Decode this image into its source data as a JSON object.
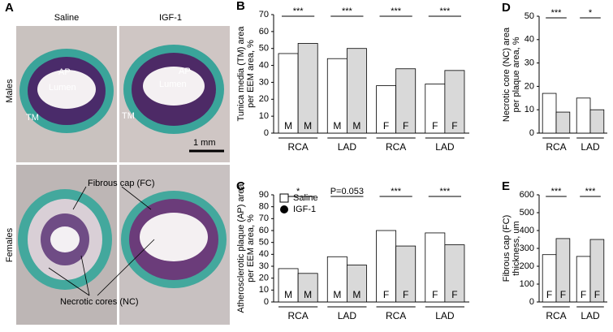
{
  "panel_a": {
    "label": "A",
    "columns": [
      "Saline",
      "IGF-1"
    ],
    "rows": [
      "Males",
      "Females"
    ],
    "male_labels": [
      "AP",
      "Lumen",
      "TM",
      "AP",
      "Lumen",
      "TM"
    ],
    "scale": "1 mm",
    "callouts": [
      "Fibrous cap (FC)",
      "Necrotic cores (NC)"
    ]
  },
  "chart_data": [
    {
      "type": "bar",
      "panel": "B",
      "ylabel": [
        "Tunica media (TM) area",
        "per EEM area, %"
      ],
      "groups": [
        "RCA",
        "LAD",
        "RCA",
        "LAD"
      ],
      "annotations": [
        "***",
        "***",
        "***",
        "***"
      ],
      "ylim": [
        0,
        70
      ],
      "yticks": [
        0,
        10,
        20,
        30,
        40,
        50,
        60,
        70
      ],
      "series": [
        {
          "color": "#ffffff",
          "values": [
            47,
            44,
            28,
            29
          ],
          "bar_labels": [
            "M",
            "M",
            "F",
            "F"
          ]
        },
        {
          "color": "#d9d9d9",
          "values": [
            53,
            50,
            38,
            37
          ],
          "bar_labels": [
            "M",
            "M",
            "F",
            "F"
          ]
        }
      ]
    },
    {
      "type": "bar",
      "panel": "C",
      "ylabel": [
        "Atherosclerotic plaque (AP) area",
        "per EEM area, %"
      ],
      "groups": [
        "RCA",
        "LAD",
        "RCA",
        "LAD"
      ],
      "annotations": [
        "*",
        "P=0.053",
        "***",
        "***"
      ],
      "ylim": [
        0,
        90
      ],
      "yticks": [
        0,
        10,
        20,
        30,
        40,
        50,
        60,
        70,
        80,
        90
      ],
      "legend": true,
      "series": [
        {
          "name": "Saline",
          "color": "#ffffff",
          "values": [
            28,
            38,
            60,
            58
          ],
          "bar_labels": [
            "M",
            "M",
            "F",
            "F"
          ]
        },
        {
          "name": "IGF-1",
          "color": "#d9d9d9",
          "values": [
            24,
            31,
            47,
            48
          ],
          "bar_labels": [
            "M",
            "M",
            "F",
            "F"
          ]
        }
      ]
    },
    {
      "type": "bar",
      "panel": "D",
      "ylabel": [
        "Necrotic core (NC) area",
        "per plaque area, %"
      ],
      "groups": [
        "RCA",
        "LAD"
      ],
      "annotations": [
        "***",
        "*"
      ],
      "ylim": [
        0,
        50
      ],
      "yticks": [
        0,
        10,
        20,
        30,
        40,
        50
      ],
      "series": [
        {
          "color": "#ffffff",
          "values": [
            17,
            15
          ]
        },
        {
          "color": "#d9d9d9",
          "values": [
            9,
            10
          ]
        }
      ]
    },
    {
      "type": "bar",
      "panel": "E",
      "ylabel": [
        "Fibrous cap (FC)",
        "thickness, um"
      ],
      "groups": [
        "RCA",
        "LAD"
      ],
      "annotations": [
        "***",
        "***"
      ],
      "ylim": [
        0,
        600
      ],
      "yticks": [
        0,
        100,
        200,
        300,
        400,
        500,
        600
      ],
      "series": [
        {
          "color": "#ffffff",
          "values": [
            265,
            255
          ],
          "bar_labels": [
            "F",
            "F"
          ]
        },
        {
          "color": "#d9d9d9",
          "values": [
            355,
            350
          ],
          "bar_labels": [
            "F",
            "F"
          ]
        }
      ]
    }
  ]
}
